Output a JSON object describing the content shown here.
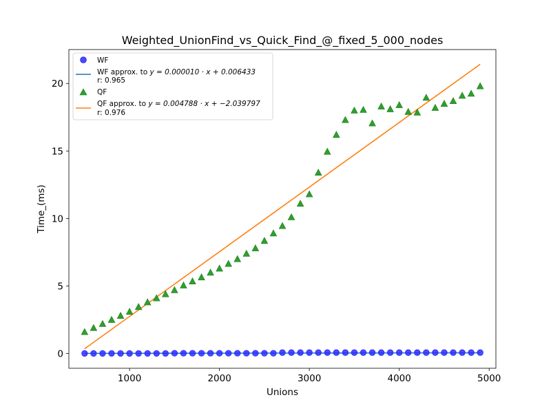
{
  "chart_data": {
    "type": "scatter",
    "title": "Weighted_UnionFind_vs_Quick_Find_@_fixed_5_000_nodes",
    "xlabel": "Unions",
    "ylabel": "Time_(ms)",
    "xlim": [
      325,
      5075
    ],
    "ylim": [
      -1.09,
      22.51
    ],
    "xticks": [
      1000,
      2000,
      3000,
      4000,
      5000
    ],
    "yticks": [
      0,
      5,
      10,
      15,
      20
    ],
    "grid": false,
    "legend_position": "top-left",
    "x": [
      500,
      600,
      700,
      800,
      900,
      1000,
      1100,
      1200,
      1300,
      1400,
      1500,
      1600,
      1700,
      1800,
      1900,
      2000,
      2100,
      2200,
      2300,
      2400,
      2500,
      2600,
      2700,
      2800,
      2900,
      3000,
      3100,
      3200,
      3300,
      3400,
      3500,
      3600,
      3700,
      3800,
      3900,
      4000,
      4100,
      4200,
      4300,
      4400,
      4500,
      4600,
      4700,
      4800,
      4900
    ],
    "series": [
      {
        "name": "WF",
        "kind": "scatter",
        "marker": "circle",
        "color": "#2a2aff",
        "values": [
          0.01,
          0.01,
          0.01,
          0.01,
          0.01,
          0.01,
          0.01,
          0.01,
          0.01,
          0.01,
          0.02,
          0.02,
          0.02,
          0.02,
          0.02,
          0.02,
          0.02,
          0.02,
          0.02,
          0.02,
          0.02,
          0.02,
          0.07,
          0.07,
          0.07,
          0.07,
          0.07,
          0.07,
          0.07,
          0.07,
          0.07,
          0.07,
          0.07,
          0.07,
          0.07,
          0.07,
          0.07,
          0.07,
          0.07,
          0.07,
          0.07,
          0.07,
          0.07,
          0.07,
          0.07
        ]
      },
      {
        "name": "QF",
        "kind": "scatter",
        "marker": "triangle",
        "color": "#2ca02c",
        "values": [
          1.6,
          1.9,
          2.2,
          2.5,
          2.8,
          3.1,
          3.45,
          3.8,
          4.1,
          4.4,
          4.7,
          5.05,
          5.35,
          5.65,
          6.0,
          6.3,
          6.65,
          7.0,
          7.4,
          7.8,
          8.35,
          8.9,
          9.45,
          10.1,
          11.1,
          11.8,
          13.4,
          14.95,
          16.2,
          17.3,
          18.0,
          18.05,
          17.05,
          18.3,
          18.1,
          18.4,
          17.9,
          17.85,
          18.95,
          18.2,
          18.5,
          18.7,
          19.1,
          19.25,
          19.8
        ]
      },
      {
        "name": "WF approx. to y = 0.000010 · x + 0.006433",
        "r_label": "r: 0.965",
        "kind": "line",
        "color": "#1f77b4",
        "slope": 1e-05,
        "intercept": 0.006433
      },
      {
        "name": "QF approx. to y = 0.004788 · x + −2.039797",
        "r_label": "r: 0.976",
        "kind": "line",
        "color": "#ff7f0e",
        "slope": 0.004788,
        "intercept": -2.039797
      }
    ],
    "legend": {
      "wf_label": "WF",
      "wf_fit_line1_text": "WF approx. to ",
      "wf_fit_line1_eq": "y = 0.000010 · x + 0.006433",
      "wf_fit_line2": "r: 0.965",
      "qf_label": "QF",
      "qf_fit_line1_text": "QF approx. to ",
      "qf_fit_line1_eq": "y = 0.004788 · x + −2.039797",
      "qf_fit_line2": "r: 0.976"
    }
  }
}
